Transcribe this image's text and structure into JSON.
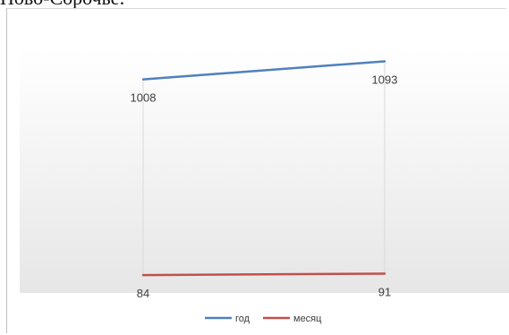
{
  "page": {
    "top_text": "Ново-Сорочье:"
  },
  "chart_data": {
    "type": "line",
    "categories": [
      "",
      ""
    ],
    "series": [
      {
        "name": "год",
        "values": [
          1008,
          1093
        ],
        "color": "#4f81bd"
      },
      {
        "name": "месяц",
        "values": [
          84,
          91
        ],
        "color": "#c0504d"
      }
    ],
    "data_labels": {
      "год": [
        "1008",
        "1093"
      ],
      "месяц": [
        "84",
        "91"
      ]
    },
    "title": "",
    "xlabel": "",
    "ylabel": "",
    "ylim": [
      0,
      1150
    ],
    "grid": false,
    "legend": "bottom"
  }
}
